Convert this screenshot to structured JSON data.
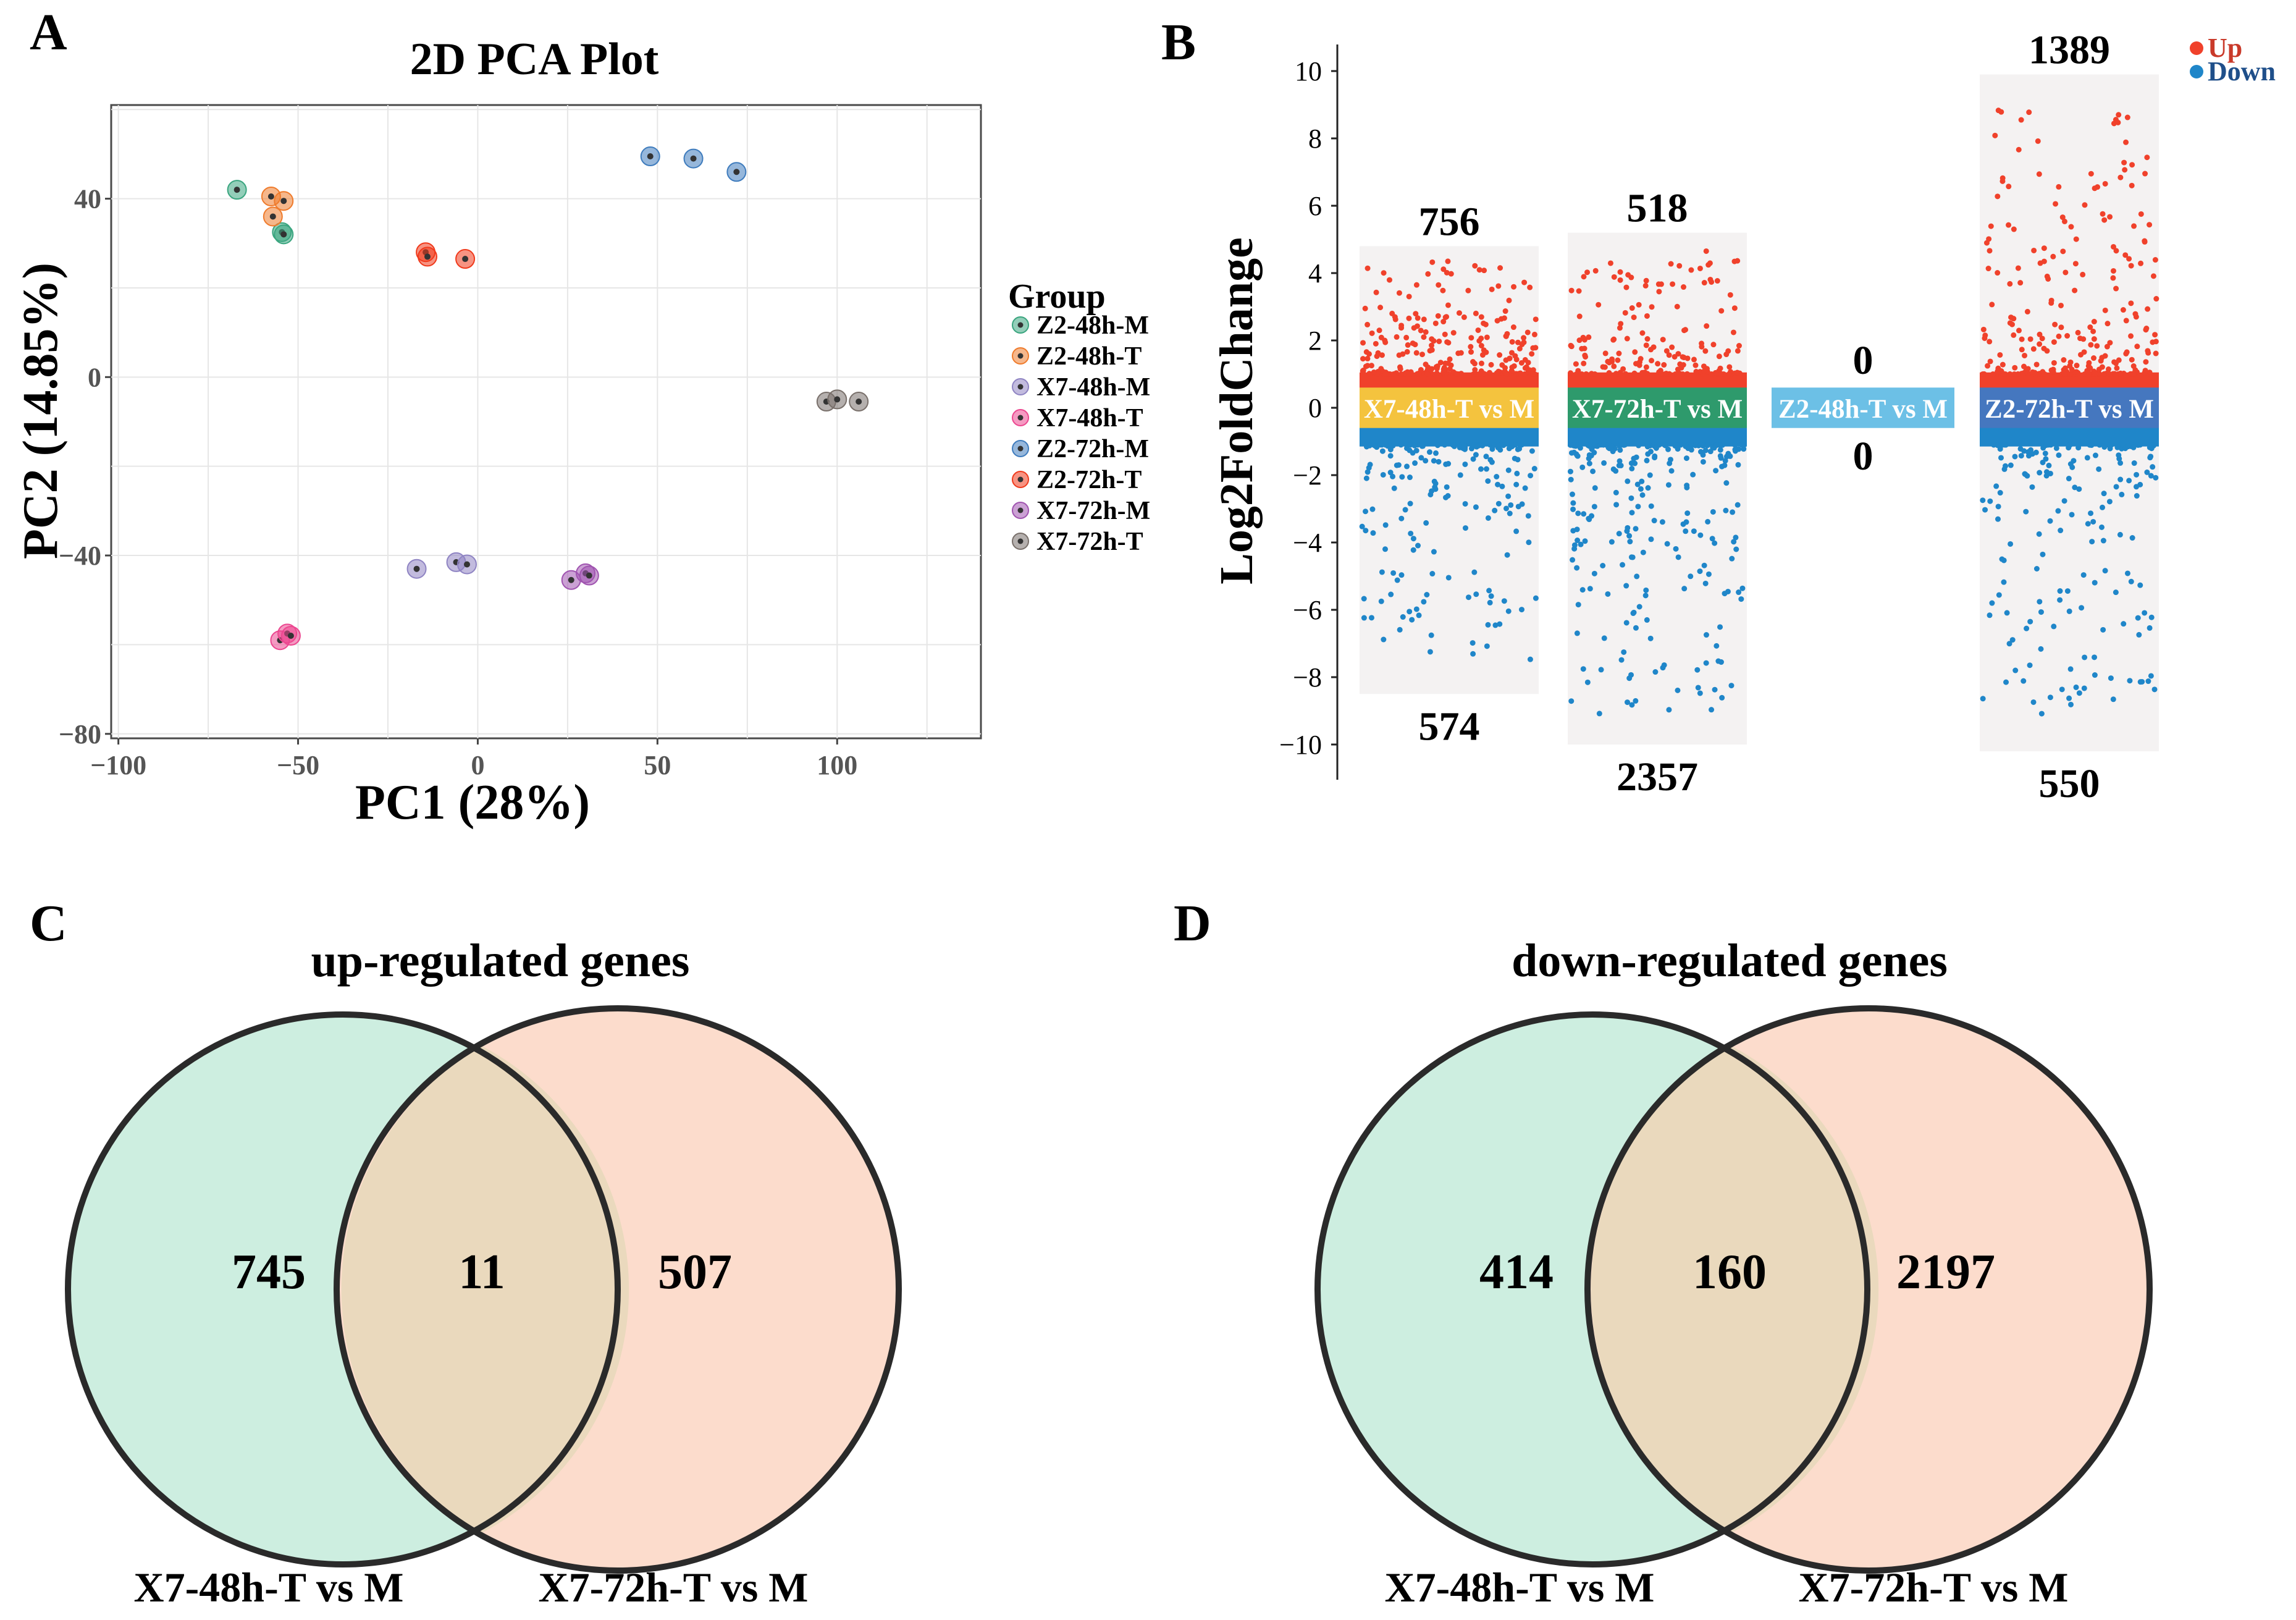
{
  "panel_letters": {
    "a": "A",
    "b": "B",
    "c": "C",
    "d": "D"
  },
  "colors": {
    "up": "#f0412b",
    "down": "#1f86c9",
    "venn_left": "#cdeee0",
    "venn_right": "#fcdccc",
    "venn_overlap": "#ead9bd"
  },
  "chart_data": [
    {
      "type": "scatter",
      "panel": "A",
      "title": "2D PCA Plot",
      "xlabel": "PC1 (28%)",
      "ylabel": "PC2 (14.85%)",
      "xlim": [
        -102,
        140
      ],
      "ylim": [
        -81,
        61
      ],
      "xticks": [
        -100,
        -50,
        0,
        50,
        100
      ],
      "yticks": [
        -80,
        -40,
        0,
        40
      ],
      "xtick_labels": [
        "−100",
        "−50",
        "0",
        "50",
        "100"
      ],
      "ytick_labels": [
        "−80",
        "−40",
        "0",
        "40"
      ],
      "legend_title": "Group",
      "series": [
        {
          "name": "Z2-48h-M",
          "color": "#3aa57f",
          "points": [
            [
              -67,
              42
            ],
            [
              -54.5,
              32.5
            ],
            [
              -54,
              32
            ]
          ]
        },
        {
          "name": "Z2-48h-T",
          "color": "#ef7b2c",
          "points": [
            [
              -57.5,
              40.5
            ],
            [
              -54,
              39.5
            ],
            [
              -57,
              36
            ]
          ]
        },
        {
          "name": "X7-48h-M",
          "color": "#8f84c3",
          "points": [
            [
              -17,
              -43
            ],
            [
              -6,
              -41.5
            ],
            [
              -3,
              -42
            ]
          ]
        },
        {
          "name": "X7-48h-T",
          "color": "#ec4790",
          "points": [
            [
              -55,
              -59
            ],
            [
              -53,
              -57.5
            ],
            [
              -52,
              -58
            ]
          ]
        },
        {
          "name": "Z2-72h-M",
          "color": "#3f7cbd",
          "points": [
            [
              48,
              49.5
            ],
            [
              60,
              49
            ],
            [
              72,
              46
            ]
          ]
        },
        {
          "name": "Z2-72h-T",
          "color": "#f03a1c",
          "points": [
            [
              -14.5,
              28
            ],
            [
              -14,
              27
            ],
            [
              -3.5,
              26.5
            ]
          ]
        },
        {
          "name": "X7-72h-M",
          "color": "#a054b0",
          "points": [
            [
              26,
              -45.5
            ],
            [
              30,
              -44
            ],
            [
              31,
              -44.5
            ]
          ]
        },
        {
          "name": "X7-72h-T",
          "color": "#79706b",
          "points": [
            [
              97,
              -5.5
            ],
            [
              100,
              -5
            ],
            [
              106,
              -5.5
            ]
          ]
        }
      ]
    },
    {
      "type": "scatter",
      "panel": "B",
      "subtype": "volcano-strip",
      "ylabel": "Log2FoldChange",
      "ylim": [
        -10.8,
        10.8
      ],
      "yticks": [
        -10,
        -8,
        -6,
        -4,
        -2,
        0,
        2,
        4,
        6,
        8,
        10
      ],
      "ytick_labels": [
        "−10",
        "−8",
        "−6",
        "−4",
        "−2",
        "0",
        "2",
        "4",
        "6",
        "8",
        "10"
      ],
      "legend": [
        "Up",
        "Down"
      ],
      "comparisons": [
        {
          "label": "X7-48h-T vs M",
          "label_color": "#f4c33e",
          "up": 756,
          "down": 574,
          "up_max": 4.4,
          "down_min": -7.7,
          "bg_range": [
            -8.5,
            4.8
          ]
        },
        {
          "label": "X7-72h-T vs M",
          "label_color": "#2e9a6c",
          "up": 518,
          "down": 2357,
          "up_max": 4.7,
          "down_min": -9.1,
          "bg_range": [
            -10,
            5.2
          ]
        },
        {
          "label": "Z2-48h-T vs M",
          "label_color": "#6cc0e6",
          "up": 0,
          "down": 0,
          "up_max": 0,
          "down_min": 0,
          "bg_range": [
            -0.4,
            0.4
          ]
        },
        {
          "label": "Z2-72h-T vs M",
          "label_color": "#4577bf",
          "up": 1389,
          "down": 550,
          "up_max": 9.1,
          "down_min": -9.2,
          "bg_range": [
            -10.2,
            9.9
          ]
        }
      ]
    },
    {
      "type": "venn",
      "panel": "C",
      "title": "up-regulated genes",
      "sets": [
        "X7-48h-T vs M",
        "X7-72h-T vs M"
      ],
      "values": {
        "only_left": 745,
        "both": 11,
        "only_right": 507
      }
    },
    {
      "type": "venn",
      "panel": "D",
      "title": "down-regulated genes",
      "sets": [
        "X7-48h-T vs M",
        "X7-72h-T vs M"
      ],
      "values": {
        "only_left": 414,
        "both": 160,
        "only_right": 2197
      }
    }
  ]
}
